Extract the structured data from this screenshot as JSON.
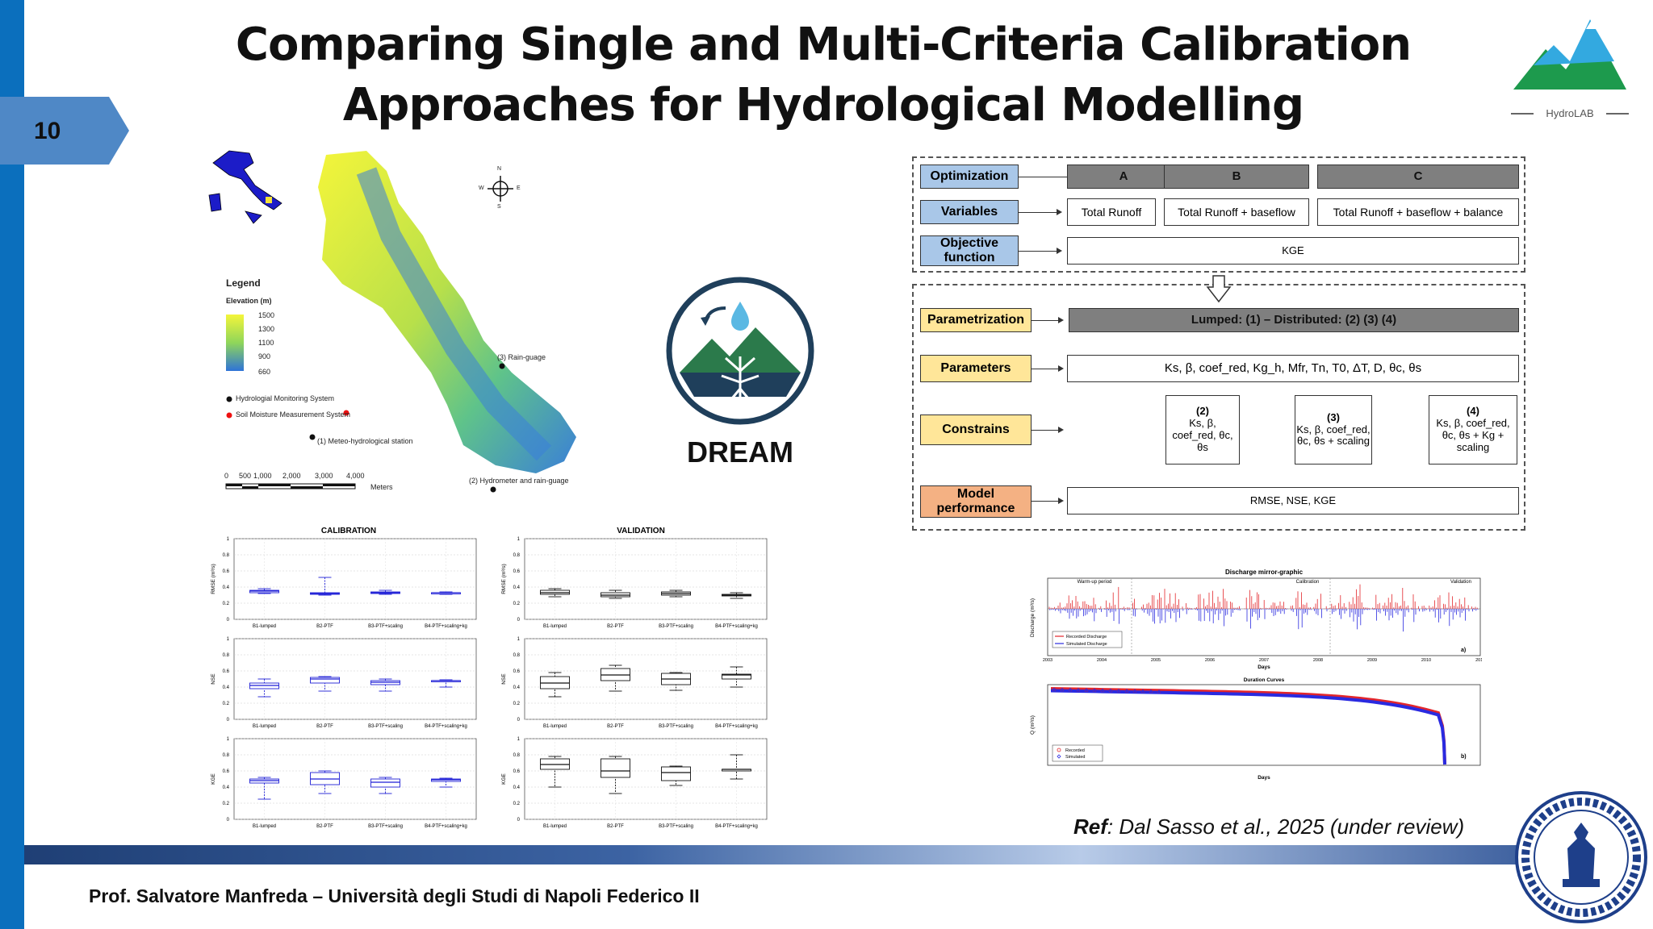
{
  "slide": {
    "number": "10"
  },
  "title": "Comparing Single and Multi-Criteria Calibration Approaches for Hydrological Modelling",
  "logo": {
    "label": "HydroLAB"
  },
  "map": {
    "legend_title": "Legend",
    "elevation_title": "Elevation (m)",
    "elevation_ticks": [
      "1500",
      "1300",
      "1100",
      "900",
      "660"
    ],
    "legend_items": [
      "Hydrologial Monitoring System",
      "Soil Moisture Measurement System"
    ],
    "stations": [
      "(3) Rain-guage",
      "(1) Meteo-hydrological station",
      "(2) Hydrometer and rain-guage"
    ],
    "compass": {
      "n": "N",
      "s": "S",
      "e": "E",
      "w": "W"
    },
    "scale_ticks": [
      "0",
      "500",
      "1,000",
      "2,000",
      "3,000",
      "4,000"
    ],
    "scale_unit": "Meters"
  },
  "dream": {
    "label": "DREAM"
  },
  "flowchart": {
    "optimization": {
      "label": "Optimization",
      "headers": [
        "A",
        "B",
        "C"
      ]
    },
    "variables": {
      "label": "Variables",
      "values": [
        "Total Runoff",
        "Total Runoff + baseflow",
        "Total Runoff + baseflow + balance"
      ]
    },
    "objective": {
      "label": "Objective function",
      "value": "KGE"
    },
    "parametrization": {
      "label": "Parametrization",
      "value": "Lumped: (1) – Distributed: (2) (3) (4)"
    },
    "parameters": {
      "label": "Parameters",
      "value": "Ks, β, coef_red, Kg_h, Mfr, Tn, T0, ΔT, D, θc, θs"
    },
    "constraints": {
      "label": "Constrains",
      "items": [
        {
          "num": "(2)",
          "text": "Ks, β, coef_red, θc, θs"
        },
        {
          "num": "(3)",
          "text": "Ks, β, coef_red, θc, θs + scaling"
        },
        {
          "num": "(4)",
          "text": "Ks, β, coef_red, θc, θs + Kg + scaling"
        }
      ]
    },
    "performance": {
      "label": "Model performance",
      "value": "RMSE, NSE, KGE"
    }
  },
  "boxplots": {
    "panels": [
      "CALIBRATION",
      "VALIDATION"
    ],
    "metrics": [
      "RMSE (m³/s)",
      "NSE",
      "KGE"
    ],
    "categories_cal": [
      "B1-lumped",
      "B2-PTF",
      "B3-PTF+scaling",
      "B4-PTF+scaling+kg"
    ],
    "categories_val": [
      "B1-lumped",
      "B2-PTF",
      "B3-PTF+scaling",
      "B4-PTF+scaling+kg"
    ],
    "y_ticks": [
      "0",
      "0.2",
      "0.4",
      "0.6",
      "0.8",
      "1"
    ],
    "colors": {
      "calibration": "#1f1fd6",
      "validation": "#111111"
    }
  },
  "discharge": {
    "title": "Discharge mirror-graphic",
    "periods": [
      "Warm-up period",
      "Calibration",
      "Validation"
    ],
    "ylabel": "Discharge (m³/s)",
    "xlabel": "Days",
    "years": [
      "2003",
      "2004",
      "2005",
      "2006",
      "2007",
      "2008",
      "2009",
      "2010",
      "2011"
    ],
    "legend": [
      "Recorded Discharge",
      "Simulated Discharge"
    ],
    "panel_a": "a)",
    "duration_title": "Duration Curves",
    "duration_ylabel": "Q (m³/s)",
    "duration_xlabel": "Days",
    "duration_legend": [
      "Recorded",
      "Simulated"
    ],
    "panel_b": "b)",
    "colors": {
      "recorded": "#e3262b",
      "simulated": "#2a2ae0"
    }
  },
  "reference": {
    "prefix": "Ref",
    "text": ": Dal Sasso et al., 2025 (under review)"
  },
  "footer": "Prof. Salvatore Manfreda – Università degli Studi di Napoli Federico II"
}
